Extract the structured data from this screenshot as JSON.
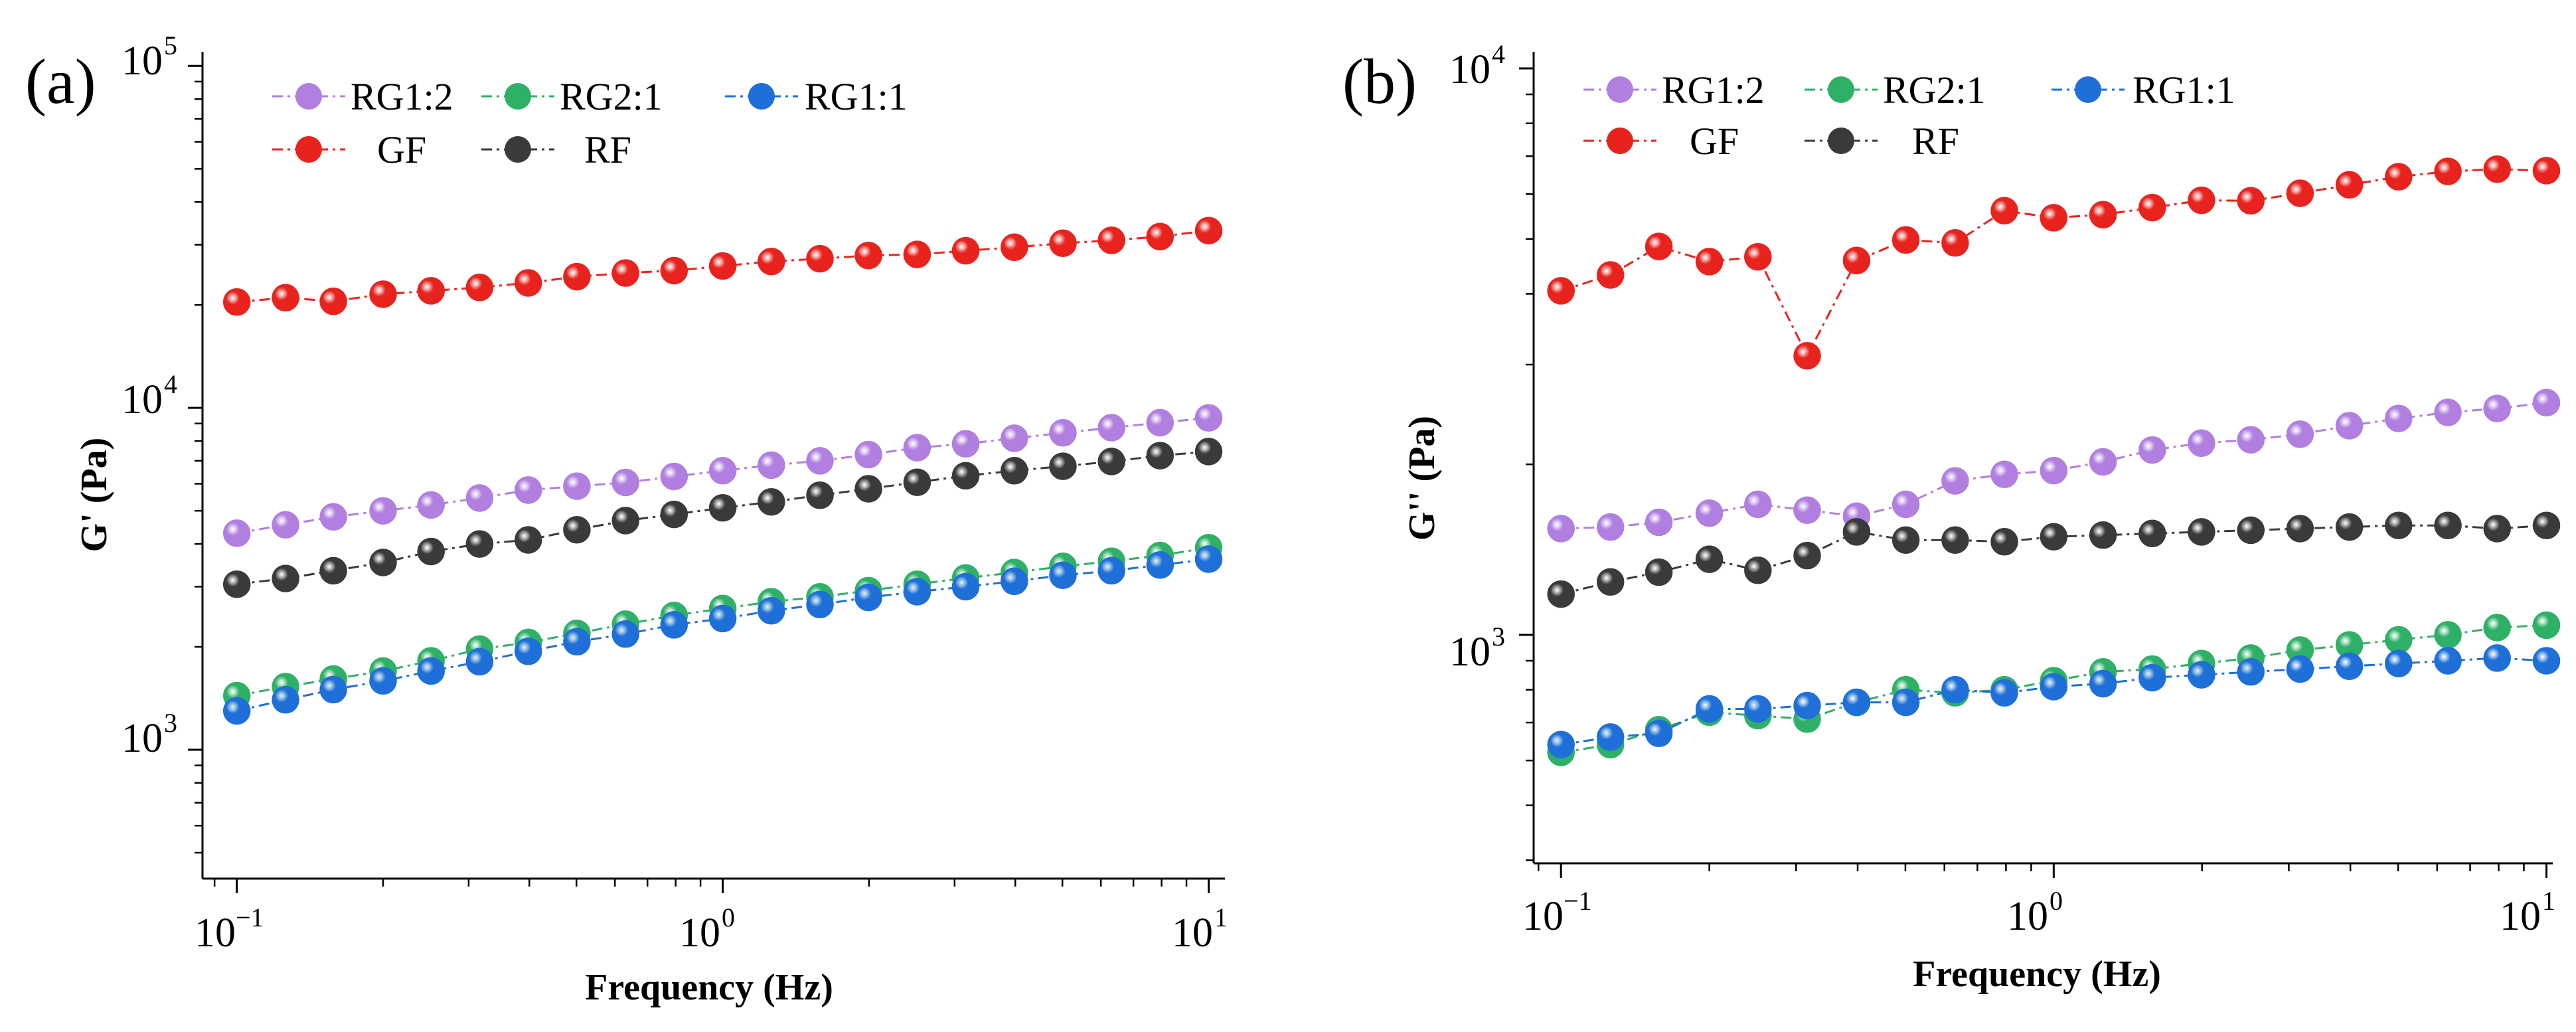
{
  "chart_data": [
    {
      "type": "line",
      "panel_label": "(a)",
      "xlabel": "Frequency (Hz)",
      "ylabel": "G' (Pa)",
      "xscale": "log",
      "yscale": "log",
      "xlim": [
        0.085,
        10.8
      ],
      "ylim": [
        420,
        110000
      ],
      "xticks": [
        {
          "base": "10",
          "exp": "−1",
          "value": 0.1
        },
        {
          "base": "10",
          "exp": "0",
          "value": 1
        },
        {
          "base": "10",
          "exp": "1",
          "value": 10
        }
      ],
      "yticks": [
        {
          "base": "10",
          "exp": "3",
          "value": 1000
        },
        {
          "base": "10",
          "exp": "4",
          "value": 10000
        },
        {
          "base": "10",
          "exp": "5",
          "value": 100000
        }
      ],
      "legend_position": "top-left",
      "x": [
        0.1,
        0.126,
        0.158,
        0.2,
        0.251,
        0.316,
        0.398,
        0.501,
        0.631,
        0.794,
        1.0,
        1.259,
        1.585,
        1.995,
        2.512,
        3.162,
        3.981,
        5.012,
        6.31,
        7.943,
        10.0
      ],
      "series": [
        {
          "name": "RG1:2",
          "color": "#b07fe0",
          "values": [
            4300,
            4550,
            4800,
            5000,
            5200,
            5450,
            5750,
            5900,
            6050,
            6300,
            6550,
            6800,
            7000,
            7300,
            7650,
            7850,
            8150,
            8450,
            8750,
            9050,
            9350
          ]
        },
        {
          "name": "RG2:1",
          "color": "#2fb067",
          "values": [
            1440,
            1530,
            1610,
            1700,
            1820,
            1970,
            2060,
            2190,
            2330,
            2470,
            2590,
            2710,
            2800,
            2920,
            3050,
            3180,
            3300,
            3440,
            3560,
            3700,
            3900
          ]
        },
        {
          "name": "RG1:1",
          "color": "#1e6fd8",
          "values": [
            1300,
            1400,
            1500,
            1590,
            1700,
            1810,
            1940,
            2070,
            2180,
            2320,
            2420,
            2550,
            2660,
            2790,
            2900,
            3000,
            3110,
            3240,
            3340,
            3470,
            3610
          ]
        },
        {
          "name": "GF",
          "color": "#e8231e",
          "values": [
            20400,
            21000,
            20500,
            21500,
            22000,
            22500,
            23200,
            24200,
            24800,
            25200,
            26000,
            26800,
            27300,
            27900,
            28100,
            28800,
            29500,
            30300,
            30900,
            31700,
            33000
          ]
        },
        {
          "name": "RF",
          "color": "#3a3a3a",
          "values": [
            3050,
            3170,
            3340,
            3530,
            3800,
            4000,
            4110,
            4400,
            4680,
            4880,
            5100,
            5310,
            5550,
            5800,
            6060,
            6330,
            6550,
            6750,
            6970,
            7250,
            7450
          ]
        }
      ]
    },
    {
      "type": "line",
      "panel_label": "(b)",
      "xlabel": "Frequency (Hz)",
      "ylabel": "G'' (Pa)",
      "xscale": "log",
      "yscale": "log",
      "xlim": [
        0.088,
        10.3
      ],
      "ylim": [
        395,
        10700
      ],
      "xticks": [
        {
          "base": "10",
          "exp": "−1",
          "value": 0.1
        },
        {
          "base": "10",
          "exp": "0",
          "value": 1
        },
        {
          "base": "10",
          "exp": "1",
          "value": 10
        }
      ],
      "yticks": [
        {
          "base": "10",
          "exp": "3",
          "value": 1000
        },
        {
          "base": "10",
          "exp": "4",
          "value": 10000
        }
      ],
      "legend_position": "top-left",
      "x": [
        0.1,
        0.126,
        0.158,
        0.2,
        0.251,
        0.316,
        0.398,
        0.501,
        0.631,
        0.794,
        1.0,
        1.259,
        1.585,
        1.995,
        2.512,
        3.162,
        3.981,
        5.012,
        6.31,
        7.943,
        10.0
      ],
      "series": [
        {
          "name": "RG1:2",
          "color": "#b07fe0",
          "values": [
            1540,
            1550,
            1580,
            1640,
            1700,
            1660,
            1620,
            1700,
            1870,
            1920,
            1950,
            2020,
            2120,
            2180,
            2210,
            2260,
            2340,
            2410,
            2470,
            2510,
            2570
          ]
        },
        {
          "name": "RG2:1",
          "color": "#2fb067",
          "values": [
            620,
            640,
            680,
            730,
            720,
            710,
            760,
            800,
            790,
            800,
            830,
            860,
            870,
            890,
            910,
            940,
            960,
            980,
            1000,
            1030,
            1040
          ]
        },
        {
          "name": "RG1:1",
          "color": "#1e6fd8",
          "values": [
            640,
            660,
            670,
            740,
            740,
            750,
            760,
            760,
            800,
            790,
            810,
            820,
            840,
            850,
            860,
            870,
            880,
            890,
            900,
            910,
            900
          ]
        },
        {
          "name": "GF",
          "color": "#e8231e",
          "values": [
            4050,
            4320,
            4850,
            4560,
            4650,
            3110,
            4580,
            4980,
            4920,
            5610,
            5450,
            5520,
            5680,
            5850,
            5840,
            6020,
            6230,
            6440,
            6580,
            6640,
            6600
          ]
        },
        {
          "name": "RF",
          "color": "#3a3a3a",
          "values": [
            1180,
            1240,
            1290,
            1360,
            1300,
            1380,
            1520,
            1470,
            1470,
            1460,
            1490,
            1500,
            1510,
            1520,
            1530,
            1540,
            1550,
            1560,
            1560,
            1540,
            1560
          ]
        }
      ]
    }
  ]
}
